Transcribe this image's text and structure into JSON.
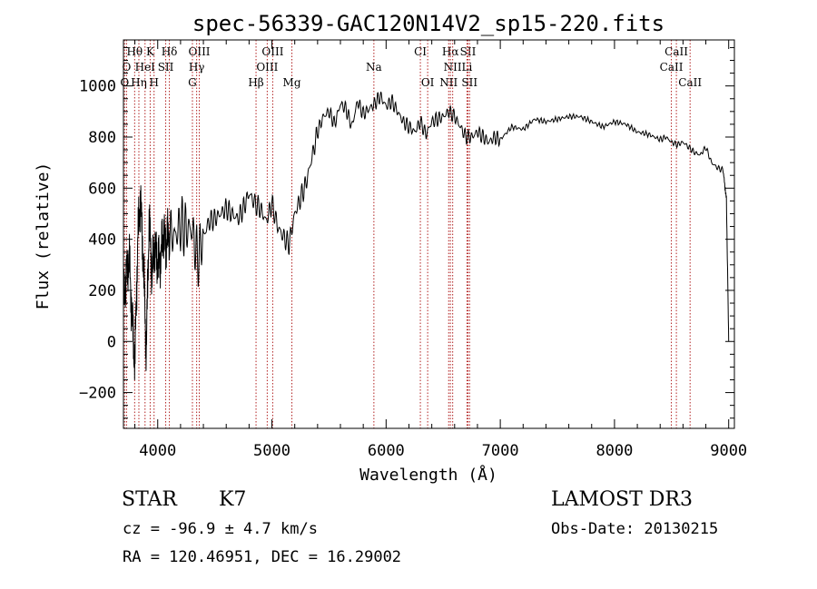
{
  "chart_data": {
    "type": "line",
    "title": "spec-56339-GAC120N14V2_sp15-220.fits",
    "xlabel": "Wavelength (Å)",
    "ylabel": "Flux (relative)",
    "xlim": [
      3700,
      9050
    ],
    "ylim": [
      -340,
      1180
    ],
    "xticks": [
      4000,
      5000,
      6000,
      7000,
      8000,
      9000
    ],
    "yticks": [
      -200,
      0,
      200,
      400,
      600,
      800,
      1000
    ],
    "grid": false,
    "line_color": "#000000",
    "marker_color": "#b22222",
    "series": [
      {
        "x": [
          3700,
          3725,
          3750,
          3775,
          3800,
          3825,
          3850,
          3875,
          3900,
          3925,
          3950,
          3975,
          4000,
          4025,
          4050,
          4075,
          4100,
          4150,
          4200,
          4250,
          4300,
          4350,
          4400,
          4450,
          4500,
          4550,
          4600,
          4650,
          4700,
          4750,
          4800,
          4850,
          4900,
          4950,
          5000,
          5050,
          5100,
          5150,
          5200,
          5250,
          5300,
          5350,
          5400,
          5450,
          5500,
          5550,
          5600,
          5650,
          5700,
          5750,
          5800,
          5850,
          5900,
          5950,
          6000,
          6050,
          6100,
          6150,
          6200,
          6250,
          6300,
          6350,
          6400,
          6450,
          6500,
          6550,
          6600,
          6650,
          6700,
          6750,
          6800,
          6850,
          6900,
          6950,
          7000,
          7100,
          7200,
          7300,
          7400,
          7500,
          7600,
          7700,
          7800,
          7900,
          8000,
          8100,
          8200,
          8300,
          8400,
          8450,
          8500,
          8550,
          8600,
          8650,
          8700,
          8750,
          8800,
          8850,
          8900,
          8950,
          8980,
          9000
        ],
        "y": [
          150,
          260,
          330,
          100,
          -90,
          400,
          560,
          300,
          -40,
          480,
          260,
          380,
          300,
          330,
          420,
          380,
          430,
          410,
          460,
          440,
          440,
          320,
          410,
          470,
          480,
          500,
          520,
          500,
          480,
          520,
          580,
          540,
          520,
          470,
          540,
          450,
          410,
          380,
          500,
          560,
          620,
          720,
          820,
          880,
          900,
          850,
          930,
          910,
          840,
          940,
          890,
          910,
          930,
          960,
          920,
          940,
          900,
          860,
          840,
          820,
          860,
          810,
          860,
          870,
          880,
          900,
          880,
          840,
          800,
          800,
          820,
          800,
          780,
          800,
          790,
          840,
          830,
          870,
          860,
          870,
          880,
          880,
          860,
          840,
          860,
          850,
          820,
          810,
          790,
          800,
          780,
          770,
          780,
          760,
          740,
          730,
          760,
          700,
          680,
          670,
          560,
          0
        ]
      }
    ],
    "annotations": [
      {
        "label": "Hθ",
        "x": 3798,
        "row": 1
      },
      {
        "label": "K",
        "x": 3934,
        "row": 1
      },
      {
        "label": "Hδ",
        "x": 4102,
        "row": 1
      },
      {
        "label": "OIII",
        "x": 4364,
        "row": 1
      },
      {
        "label": "OIII",
        "x": 5007,
        "row": 1
      },
      {
        "label": "CI",
        "x": 6300,
        "row": 1
      },
      {
        "label": "Hα",
        "x": 6563,
        "row": 1
      },
      {
        "label": "SII",
        "x": 6717,
        "row": 1
      },
      {
        "label": "CaII",
        "x": 8542,
        "row": 1
      },
      {
        "label": "O",
        "x": 3727,
        "row": 2
      },
      {
        "label": "HeI",
        "x": 3889,
        "row": 2
      },
      {
        "label": "SII",
        "x": 4070,
        "row": 2
      },
      {
        "label": "Hγ",
        "x": 4341,
        "row": 2
      },
      {
        "label": "OIII",
        "x": 4959,
        "row": 2
      },
      {
        "label": "Na",
        "x": 5893,
        "row": 2
      },
      {
        "label": "NII",
        "x": 6583,
        "row": 2
      },
      {
        "label": "Li",
        "x": 6708,
        "row": 2
      },
      {
        "label": "CaII",
        "x": 8498,
        "row": 2
      },
      {
        "label": "O",
        "x": 3710,
        "row": 3
      },
      {
        "label": "Hη",
        "x": 3835,
        "row": 3
      },
      {
        "label": "H",
        "x": 3968,
        "row": 3
      },
      {
        "label": "G",
        "x": 4304,
        "row": 3
      },
      {
        "label": "Hβ",
        "x": 4861,
        "row": 3
      },
      {
        "label": "Mg",
        "x": 5175,
        "row": 3
      },
      {
        "label": "OI",
        "x": 6364,
        "row": 3
      },
      {
        "label": "NII",
        "x": 6548,
        "row": 3
      },
      {
        "label": "SII",
        "x": 6731,
        "row": 3
      },
      {
        "label": "CaII",
        "x": 8662,
        "row": 3
      }
    ]
  },
  "info": {
    "class_label": "STAR",
    "subclass": "K7",
    "survey": "LAMOST DR3",
    "cz_text": "cz = -96.9 ± 4.7 km/s",
    "obs_date_text": "Obs-Date: 20130215",
    "radec_text": "RA = 120.46951, DEC =  16.29002"
  }
}
